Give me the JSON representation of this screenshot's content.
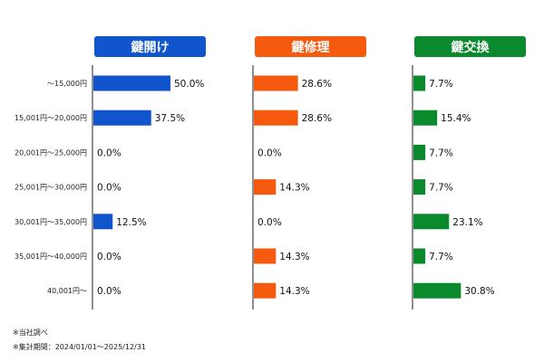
{
  "chart_data": {
    "type": "bar",
    "orientation": "horizontal",
    "categories": [
      "～15,000円",
      "15,001円～20,000円",
      "20,001円～25,000円",
      "25,001円～30,000円",
      "30,001円～35,000円",
      "35,001円～40,000円",
      "40,001円～"
    ],
    "series": [
      {
        "name": "鍵開け",
        "color": "#1155cc",
        "values": [
          50.0,
          37.5,
          0.0,
          0.0,
          12.5,
          0.0,
          0.0
        ]
      },
      {
        "name": "鍵修理",
        "color": "#f55a0f",
        "values": [
          28.6,
          28.6,
          0.0,
          14.3,
          0.0,
          14.3,
          14.3
        ]
      },
      {
        "name": "鍵交換",
        "color": "#0a8a2d",
        "values": [
          7.7,
          15.4,
          7.7,
          7.7,
          23.1,
          7.7,
          30.8
        ]
      }
    ],
    "value_unit": "%",
    "xlim": [
      0,
      100
    ],
    "grid": false,
    "legend": "none"
  },
  "notes": [
    "※当社調べ",
    "※集計期間：2024/01/01～2025/12/31"
  ]
}
